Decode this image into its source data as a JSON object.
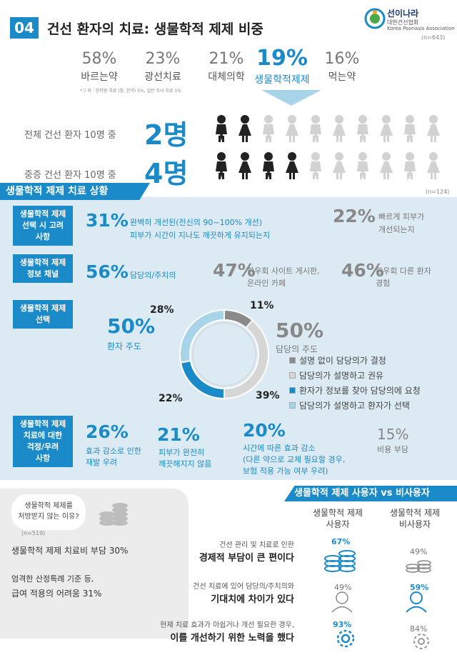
{
  "header": {
    "number": "04",
    "title": "건선 환자의 치료: 생물학적 제제 비중",
    "logo_name": "선이나라",
    "logo_sub1": "대한건선협회",
    "logo_sub2": "Korea Psoriasis Association",
    "sample_n": "(n=643)"
  },
  "treatments": [
    {
      "pct": "58%",
      "label": "바르는약"
    },
    {
      "pct": "23%",
      "label": "광선치료"
    },
    {
      "pct": "21%",
      "label": "대체의학"
    },
    {
      "pct": "19%",
      "label": "생물학적제제"
    },
    {
      "pct": "16%",
      "label": "먹는약"
    }
  ],
  "footnote": "*그 외 : 한약원 치료 (침, 한약) 5%, 일반 주사 치료 1%",
  "ratio_rows": [
    {
      "label": "전체 건선 환자 10명 중",
      "count": "2명",
      "filled": 2
    },
    {
      "label": "중증 건선 환자 10명 중",
      "count": "4명",
      "filled": 4
    }
  ],
  "section": {
    "title": "생물학적 제제 치료 상황",
    "sample_n": "(n=124)",
    "factors": {
      "label": "생물학적 제제\n선택 시 고려\n사항",
      "main_pct": "31%",
      "main_text1": "완벽히 개선된(전신의 90~100% 개선)",
      "main_text2": "피부가 시간이 지나도 깨끗하게 유지되는지",
      "side_pct": "22%",
      "side_text1": "빠르게 피부가",
      "side_text2": "개선되는지"
    },
    "info": {
      "label": "생물학적 제제\n정보 채널",
      "p1": "56%",
      "t1": "담당의/주치의",
      "p2": "47%",
      "t2a": "환우회 사이트 게시판,",
      "t2b": "온라인 카페",
      "p3": "46%",
      "t3a": "환우회 다른 환자",
      "t3b": "경험"
    },
    "choice": {
      "label": "생물학적 제제\n선택",
      "patient_pct": "50%",
      "patient_label": "환자 주도",
      "doctor_pct": "50%",
      "doctor_label": "담당의 주도",
      "ring_labels": {
        "top_right": "11%",
        "top_left": "28%",
        "bottom_left": "22%",
        "bottom_right": "39%"
      }
    },
    "legend": [
      {
        "label": "설명 없이 담당의가 결정",
        "color": "#8a8a8a"
      },
      {
        "label": "담당의가 설명하고 권유",
        "color": "#d6d6d6"
      },
      {
        "label": "환자가 정보를 찾아 담당의에 요청",
        "color": "#1a8ac9"
      },
      {
        "label": "담당의가 설명하고 환자가 선택",
        "color": "#a8d4ea"
      }
    ],
    "concern": {
      "label": "생물학적 제제\n치료에 대한\n걱정/우려\n사항",
      "p1": "26%",
      "t1a": "효과 감소로 인한",
      "t1b": "재발 우려",
      "p2": "21%",
      "t2a": "피부가 완전히",
      "t2b": "깨끗해지지 않음",
      "p3": "20%",
      "t3a": "시간에 따른 효과 감소",
      "t3b": "(다른 약으로 교체 필요할 경우,",
      "t3c": "보험 적용 가능 여부 우려)",
      "p4": "15%",
      "t4": "비용 부담"
    }
  },
  "nonuse": {
    "question1": "생물학적 제제를",
    "question2": "처방받지 않는 이유?",
    "sample_n": "(n=519)",
    "reason1": "생물학적 제제 치료비 부담 30%",
    "reason2a": "엄격한 산정특례 기준 등,",
    "reason2b": "급여 적용의 어려움 31%"
  },
  "vs": {
    "title": "생물학적 제제 사용자 vs 비사용자",
    "col_user": "생물학적 제제\n사용자",
    "col_nonuser": "생물학적 제제\n비사용자",
    "rows": [
      {
        "top": "건선 관리 및 치료로 인한",
        "bold": "경제적 부담이 큰 편이다",
        "user": "67%",
        "nonuser": "49%"
      },
      {
        "top": "건선 치료에 있어 담당의/주치의와",
        "bold": "기대치에 차이가 있다",
        "user": "49%",
        "nonuser": "59%"
      },
      {
        "top": "현재 치료 효과가 아쉽거나 개선 필요한 경우,",
        "bold": "이를 개선하기 위한 노력을 했다",
        "user": "93%",
        "nonuser": "84%"
      }
    ]
  },
  "colors": {
    "accent": "#1a8ac9",
    "light": "#a8d4ea",
    "panel": "#dcebf3"
  }
}
